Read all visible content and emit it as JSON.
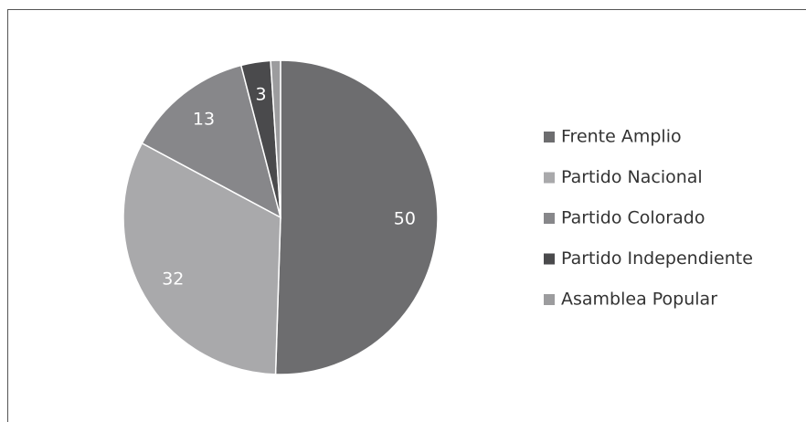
{
  "chart_data": {
    "type": "pie",
    "categories": [
      "Frente Amplio",
      "Partido Nacional",
      "Partido Colorado",
      "Partido Independiente",
      "Asamblea Popular"
    ],
    "values": [
      50,
      32,
      13,
      3,
      1
    ],
    "value_labels": [
      "50",
      "32",
      "13",
      "3",
      null
    ],
    "colors": [
      "#6d6d6f",
      "#a9a9ab",
      "#87878a",
      "#4a4a4c",
      "#9c9c9e"
    ],
    "legend": "right"
  }
}
